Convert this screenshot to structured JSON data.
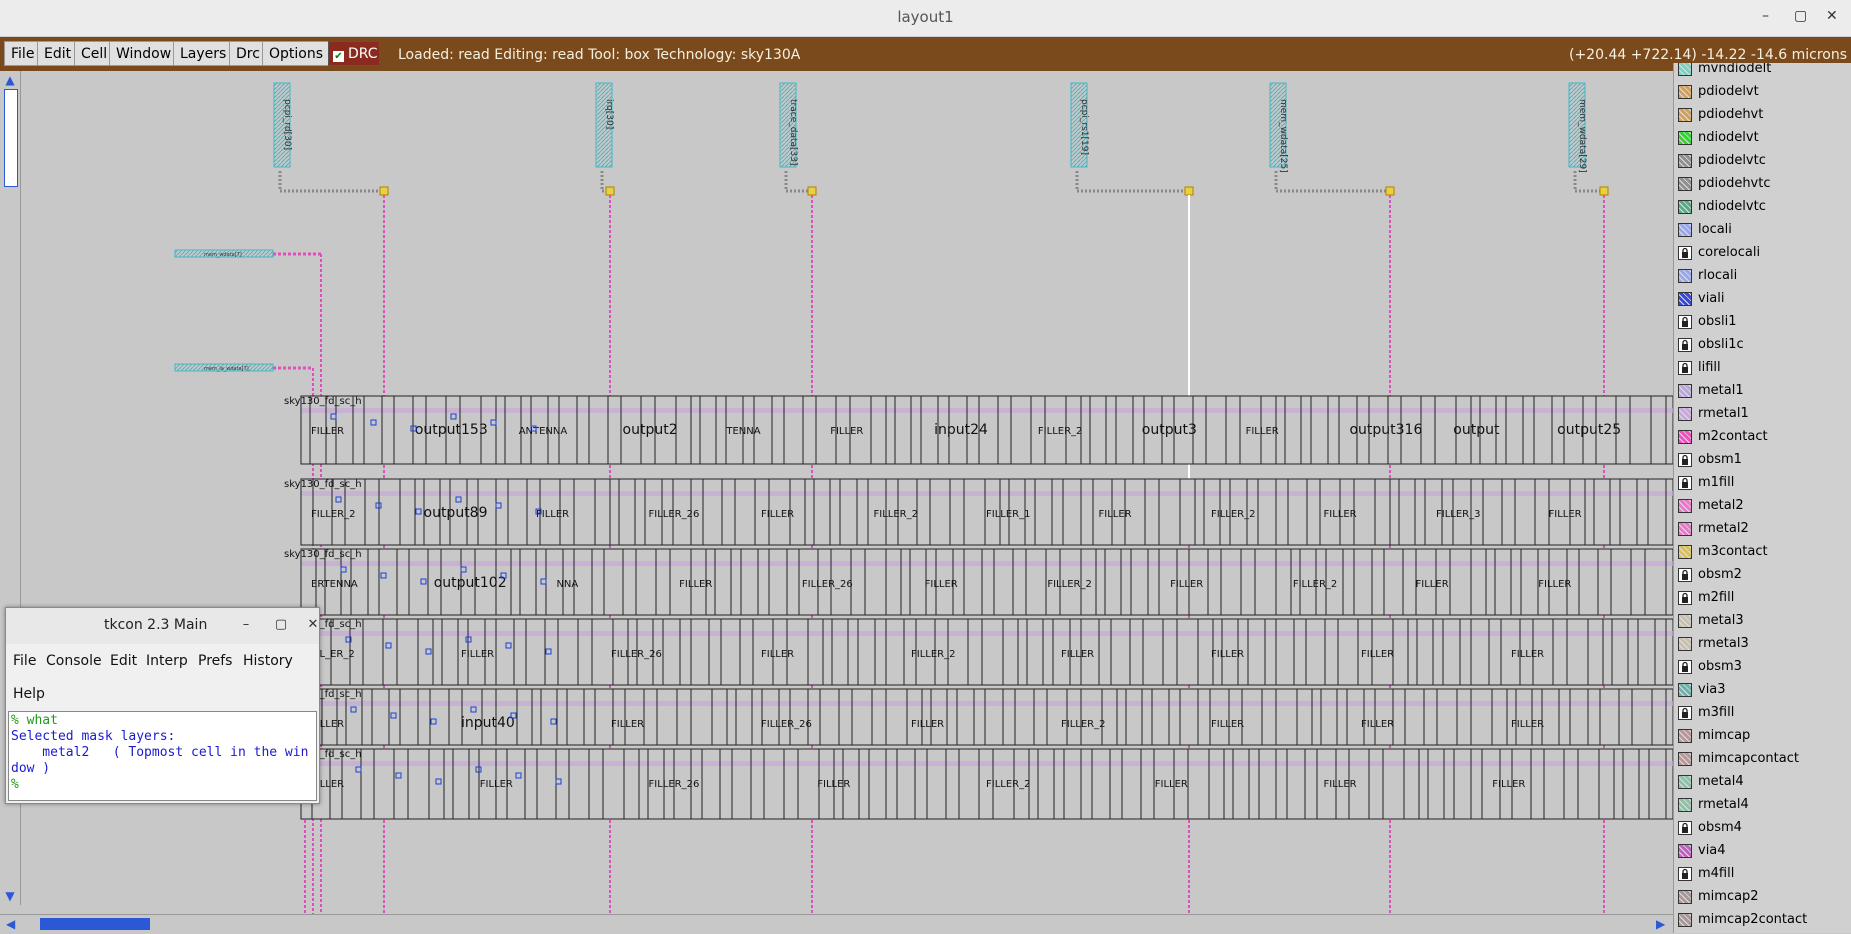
{
  "window": {
    "title": "layout1",
    "controls": [
      "–",
      "▢",
      "✕"
    ]
  },
  "menubar": {
    "items": [
      "File",
      "Edit",
      "Cell",
      "Window",
      "Layers",
      "Drc",
      "Options"
    ],
    "drc_label": "DRC",
    "status": "Loaded: read  Editing: read  Tool: box  Technology: sky130A",
    "coords": "(+20.44 +722.14) -14.22 -14.6 microns"
  },
  "canvas": {
    "pins": [
      "pcpi_rd[30]",
      "irq[30]",
      "trace_data[33]",
      "pcpi_rs1[19]",
      "mem_wdata[25]",
      "mem_wdata[29]"
    ],
    "rows": [
      {
        "prefix": "sky130_fd_sc_h",
        "labels": [
          "FILLER",
          "output153",
          "ANTENNA",
          "output2",
          "TENNA",
          "FILLER",
          "input24",
          "FILLER_2",
          "output3",
          "FILLER",
          "output316",
          "output",
          "output25"
        ]
      },
      {
        "prefix": "sky130_fd_sc_h",
        "labels": [
          "FILLER_2",
          "output89",
          "FILLER",
          "FILLER_26",
          "FILLER",
          "FILLER_2",
          "FILLER_1",
          "FILLER",
          "FILLER_2",
          "FILLER",
          "FILLER_3",
          "FILLER"
        ]
      },
      {
        "prefix": "sky130_fd_sc_h",
        "labels": [
          "ERTENNA",
          "output102",
          "NNA",
          "FILLER",
          "FILLER_26",
          "FILLER",
          "FILLER_2",
          "FILLER",
          "FILLER_2",
          "FILLER",
          "FILLER"
        ]
      },
      {
        "prefix": "sky130_fd_sc_h",
        "labels": [
          "ILL_ER_2",
          "FILLER",
          "FILLER_26",
          "FILLER",
          "FILLER_2",
          "FILLER",
          "FILLER",
          "FILLER",
          "FILLER"
        ]
      },
      {
        "prefix": "sky130_fd_sc_h",
        "labels": [
          "FILLER",
          "input40",
          "FILLER",
          "FILLER_26",
          "FILLER",
          "FILLER_2",
          "FILLER",
          "FILLER",
          "FILLER"
        ]
      },
      {
        "prefix": "sky130_fd_sc_h",
        "labels": [
          "FILLER",
          "FILLER",
          "FILLER_26",
          "FILLER",
          "FILLER_2",
          "FILLER",
          "FILLER",
          "FILLER"
        ]
      }
    ],
    "left_labels": [
      "mem_wdata[7]",
      "mem_la_wdata[7]",
      "mem_wdata[6]"
    ]
  },
  "layers": [
    {
      "name": "mvndiodelt",
      "color": "#7fd0c0",
      "locked": false
    },
    {
      "name": "pdiodelvt",
      "color": "#d0a060",
      "locked": false
    },
    {
      "name": "pdiodehvt",
      "color": "#d0a060",
      "locked": false
    },
    {
      "name": "ndiodelvt",
      "color": "#3ad03a",
      "locked": false
    },
    {
      "name": "pdiodelvtc",
      "color": "#909090",
      "locked": false
    },
    {
      "name": "pdiodehvtc",
      "color": "#909090",
      "locked": false
    },
    {
      "name": "ndiodelvtc",
      "color": "#5aaa88",
      "locked": false
    },
    {
      "name": "locali",
      "color": "#9aa8e8",
      "locked": false
    },
    {
      "name": "corelocali",
      "color": "#ffffff",
      "locked": true
    },
    {
      "name": "rlocali",
      "color": "#9aa8e8",
      "locked": false
    },
    {
      "name": "viali",
      "color": "#3a4ad0",
      "locked": false
    },
    {
      "name": "obsli1",
      "color": "#ffffff",
      "locked": true
    },
    {
      "name": "obsli1c",
      "color": "#ffffff",
      "locked": true
    },
    {
      "name": "lifill",
      "color": "#ffffff",
      "locked": true
    },
    {
      "name": "metal1",
      "color": "#b8a8d8",
      "locked": false
    },
    {
      "name": "rmetal1",
      "color": "#c8a8d8",
      "locked": false
    },
    {
      "name": "m2contact",
      "color": "#f050c0",
      "locked": false
    },
    {
      "name": "obsm1",
      "color": "#ffffff",
      "locked": true
    },
    {
      "name": "m1fill",
      "color": "#ffffff",
      "locked": true
    },
    {
      "name": "metal2",
      "color": "#e878c8",
      "locked": false
    },
    {
      "name": "rmetal2",
      "color": "#e878c8",
      "locked": false
    },
    {
      "name": "m3contact",
      "color": "#d8c060",
      "locked": false
    },
    {
      "name": "obsm2",
      "color": "#ffffff",
      "locked": true
    },
    {
      "name": "m2fill",
      "color": "#ffffff",
      "locked": true
    },
    {
      "name": "metal3",
      "color": "#c8c0b0",
      "locked": false
    },
    {
      "name": "rmetal3",
      "color": "#c8c0b0",
      "locked": false
    },
    {
      "name": "obsm3",
      "color": "#ffffff",
      "locked": true
    },
    {
      "name": "via3",
      "color": "#70b0a8",
      "locked": false
    },
    {
      "name": "m3fill",
      "color": "#ffffff",
      "locked": true
    },
    {
      "name": "mimcap",
      "color": "#b89898",
      "locked": false
    },
    {
      "name": "mimcapcontact",
      "color": "#b89898",
      "locked": false
    },
    {
      "name": "metal4",
      "color": "#90c0a8",
      "locked": false
    },
    {
      "name": "rmetal4",
      "color": "#90c0a8",
      "locked": false
    },
    {
      "name": "obsm4",
      "color": "#ffffff",
      "locked": true
    },
    {
      "name": "via4",
      "color": "#c060c0",
      "locked": false
    },
    {
      "name": "m4fill",
      "color": "#ffffff",
      "locked": true
    },
    {
      "name": "mimcap2",
      "color": "#a89898",
      "locked": false
    },
    {
      "name": "mimcap2contact",
      "color": "#a89898",
      "locked": false
    }
  ],
  "tkcon": {
    "title": "tkcon 2.3 Main",
    "menu": [
      "File",
      "Console",
      "Edit",
      "Interp",
      "Prefs",
      "History",
      "Help"
    ],
    "lines": [
      {
        "text": "% what",
        "color": "#1f9a1f"
      },
      {
        "text": "Selected mask layers:",
        "color": "#1b1bd0"
      },
      {
        "text": "    metal2   ( Topmost cell in the win",
        "color": "#1b1bd0"
      },
      {
        "text": "dow )",
        "color": "#1b1bd0"
      },
      {
        "text": "% ",
        "color": "#1f9a1f"
      }
    ]
  }
}
